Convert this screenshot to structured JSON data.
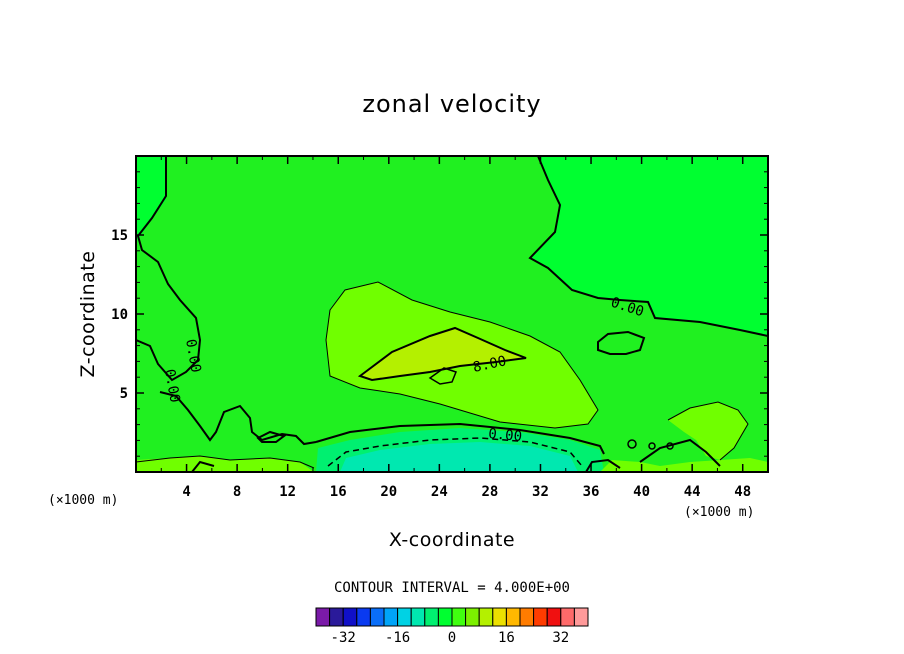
{
  "chart_data": {
    "type": "contour",
    "title": "zonal velocity",
    "xlabel": "X-coordinate",
    "ylabel": "Z-coordinate",
    "x_unit": "(×1000 m)",
    "y_unit": "(×1000 m)",
    "xlim": [
      0,
      50
    ],
    "ylim": [
      0,
      20
    ],
    "x_ticks": [
      4,
      8,
      12,
      16,
      20,
      24,
      28,
      32,
      36,
      40,
      44,
      48
    ],
    "y_ticks": [
      5,
      10,
      15
    ],
    "contour_interval_text": "CONTOUR INTERVAL = 4.000E+00",
    "contour_labels": [
      "0.00",
      "0.00",
      "0.00",
      "8.00",
      "0.00"
    ],
    "colorbar": {
      "levels": [
        -36,
        -32,
        -28,
        -24,
        -20,
        -16,
        -12,
        -8,
        -4,
        0,
        4,
        8,
        12,
        16,
        20,
        24,
        28,
        32,
        36
      ],
      "tick_labels": [
        "-32",
        "-16",
        "0",
        "16",
        "32"
      ],
      "tick_values": [
        -32,
        -16,
        0,
        16,
        32
      ],
      "colors": [
        "#7a1aa8",
        "#2a1a9a",
        "#1010c8",
        "#0a3af0",
        "#0a6ef8",
        "#00a4f8",
        "#00d2e4",
        "#00e8b0",
        "#00f070",
        "#00ff30",
        "#40ff10",
        "#7cf000",
        "#b4f000",
        "#ece000",
        "#ffb800",
        "#ff7c00",
        "#ff3c00",
        "#f01010",
        "#ff6a6a",
        "#ff9a9a"
      ]
    },
    "field_colors": {
      "range_neg4_0": "#00ff30",
      "range_0_4": "#20f020",
      "range_4_8": "#70ff00",
      "range_8_12": "#b4f000",
      "range_neg8_neg4": "#00f070",
      "range_neg12_neg8": "#00e8b0"
    }
  }
}
